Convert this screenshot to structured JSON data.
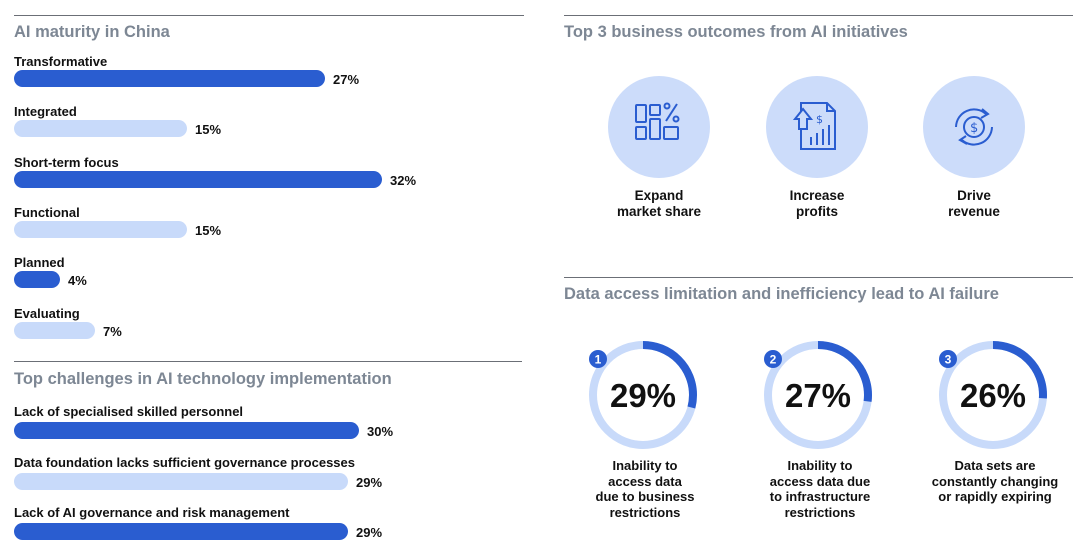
{
  "colors": {
    "dark_bar": "#2a5dd0",
    "light_bar": "#c8dafa",
    "circle_bg": "#ccdcfa",
    "icon": "#2a5dd0",
    "title": "#7d8794"
  },
  "maturity": {
    "title": "AI maturity in China"
  },
  "challenges": {
    "title": "Top challenges in AI technology implementation"
  },
  "outcomes": {
    "title": "Top 3 business outcomes from AI initiatives",
    "items": [
      {
        "label": "Expand\nmarket share",
        "icon": "market-share-icon"
      },
      {
        "label": "Increase\nprofits",
        "icon": "profit-icon"
      },
      {
        "label": "Drive\nrevenue",
        "icon": "revenue-icon"
      }
    ]
  },
  "data_access": {
    "title": "Data access limitation and inefficiency lead to AI failure"
  },
  "chart_data": [
    {
      "type": "bar",
      "orientation": "horizontal",
      "title": "AI maturity in China",
      "categories": [
        "Transformative",
        "Integrated",
        "Short-term focus",
        "Functional",
        "Planned",
        "Evaluating"
      ],
      "values": [
        27,
        15,
        32,
        15,
        4,
        7
      ],
      "labels": [
        "27%",
        "15%",
        "32%",
        "15%",
        "4%",
        "7%"
      ],
      "highlight": [
        true,
        false,
        true,
        false,
        true,
        false
      ],
      "unit": "%"
    },
    {
      "type": "bar",
      "orientation": "horizontal",
      "title": "Top challenges in AI technology implementation",
      "categories": [
        "Lack of specialised skilled personnel",
        "Data foundation lacks sufficient governance processes",
        "Lack of AI governance and risk management"
      ],
      "values": [
        30,
        29,
        29
      ],
      "labels": [
        "30%",
        "29%",
        "29%"
      ],
      "highlight": [
        true,
        false,
        true
      ],
      "unit": "%"
    },
    {
      "type": "pie",
      "style": "donut",
      "title": "Data access limitation and inefficiency lead to AI failure",
      "items": [
        {
          "rank": "1",
          "value": 29,
          "label": "29%",
          "description": "Inability to\naccess data\ndue to business\nrestrictions"
        },
        {
          "rank": "2",
          "value": 27,
          "label": "27%",
          "description": "Inability to\naccess data due\nto infrastructure\nrestrictions"
        },
        {
          "rank": "3",
          "value": 26,
          "label": "26%",
          "description": "Data sets are\nconstantly changing\nor rapidly expiring"
        }
      ]
    }
  ]
}
